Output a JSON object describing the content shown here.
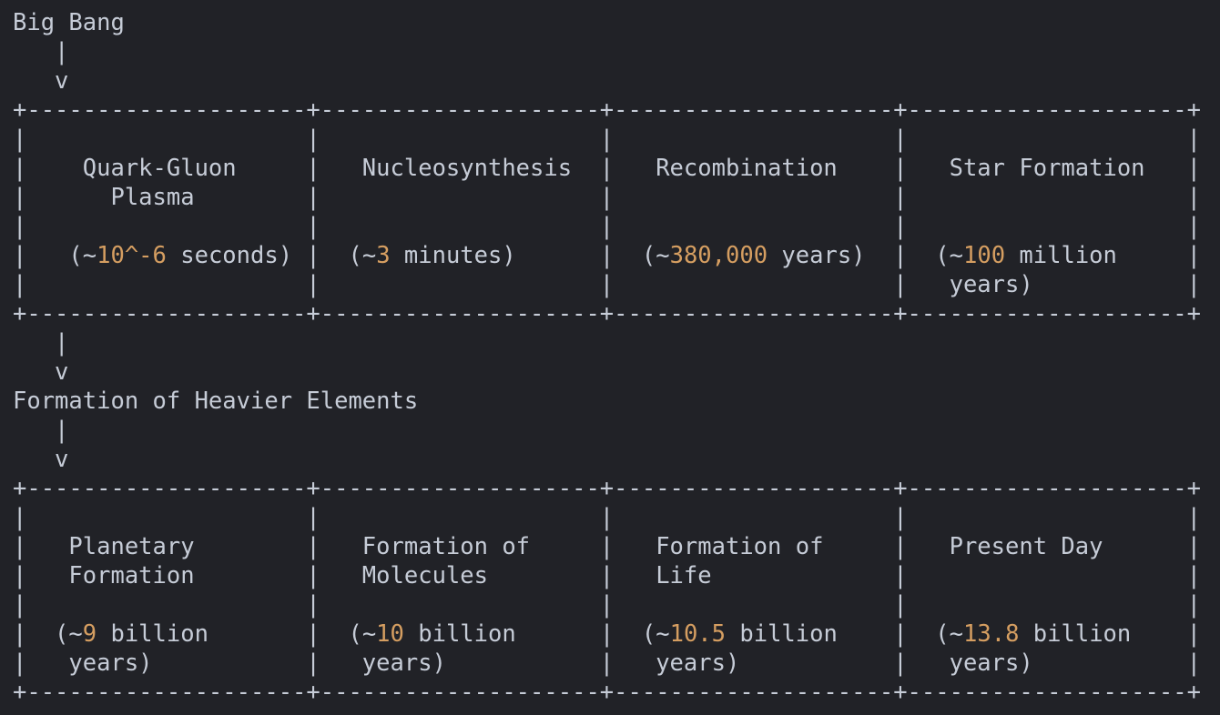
{
  "colors": {
    "background": "#212227",
    "foreground": "#c6ccd7",
    "number_accent": "#d59e61"
  },
  "flow": {
    "start_label": "Big Bang",
    "intermediate_label": "Formation of Heavier Elements",
    "arrow_pipe": "|",
    "arrow_head": "v"
  },
  "stage_rows": [
    [
      {
        "name": "Quark-Gluon Plasma",
        "time": "~10^-6 seconds"
      },
      {
        "name": "Nucleosynthesis",
        "time": "~3 minutes"
      },
      {
        "name": "Recombination",
        "time": "~380,000 years"
      },
      {
        "name": "Star Formation",
        "time": "~100 million years"
      }
    ],
    [
      {
        "name": "Planetary Formation",
        "time": "~9 billion years"
      },
      {
        "name": "Formation of Molecules",
        "time": "~10 billion years"
      },
      {
        "name": "Formation of Life",
        "time": "~10.5 billion years"
      },
      {
        "name": "Present Day",
        "time": "~13.8 billion years"
      }
    ]
  ],
  "diagram": {
    "lines": [
      [
        {
          "t": "Big Bang"
        }
      ],
      [
        {
          "t": "   |"
        }
      ],
      [
        {
          "t": "   v"
        }
      ],
      [
        {
          "t": "+--------------------+--------------------+--------------------+--------------------+"
        }
      ],
      [
        {
          "t": "|                    |                    |                    |                    |"
        }
      ],
      [
        {
          "t": "|    Quark-Gluon     |   Nucleosynthesis  |   Recombination    |   Star Formation   |"
        }
      ],
      [
        {
          "t": "|      Plasma        |                    |                    |                    |"
        }
      ],
      [
        {
          "t": "|                    |                    |                    |                    |"
        }
      ],
      [
        {
          "t": "|   (~"
        },
        {
          "t": "10^-6",
          "c": "num"
        },
        {
          "t": " seconds) |  (~"
        },
        {
          "t": "3",
          "c": "num"
        },
        {
          "t": " minutes)      |  (~"
        },
        {
          "t": "380,000",
          "c": "num"
        },
        {
          "t": " years)  |  (~"
        },
        {
          "t": "100",
          "c": "num"
        },
        {
          "t": " million     |"
        }
      ],
      [
        {
          "t": "|                    |                    |                    |   years)           |"
        }
      ],
      [
        {
          "t": "+--------------------+--------------------+--------------------+--------------------+"
        }
      ],
      [
        {
          "t": "   |"
        }
      ],
      [
        {
          "t": "   v"
        }
      ],
      [
        {
          "t": "Formation of Heavier Elements"
        }
      ],
      [
        {
          "t": "   |"
        }
      ],
      [
        {
          "t": "   v"
        }
      ],
      [
        {
          "t": "+--------------------+--------------------+--------------------+--------------------+"
        }
      ],
      [
        {
          "t": "|                    |                    |                    |                    |"
        }
      ],
      [
        {
          "t": "|   Planetary        |   Formation of     |   Formation of     |   Present Day      |"
        }
      ],
      [
        {
          "t": "|   Formation        |   Molecules        |   Life             |                    |"
        }
      ],
      [
        {
          "t": "|                    |                    |                    |                    |"
        }
      ],
      [
        {
          "t": "|  (~"
        },
        {
          "t": "9",
          "c": "num"
        },
        {
          "t": " billion       |  (~"
        },
        {
          "t": "10",
          "c": "num"
        },
        {
          "t": " billion      |  (~"
        },
        {
          "t": "10.5",
          "c": "num"
        },
        {
          "t": " billion    |  (~"
        },
        {
          "t": "13.8",
          "c": "num"
        },
        {
          "t": " billion    |"
        }
      ],
      [
        {
          "t": "|   years)           |   years)           |   years)           |   years)           |"
        }
      ],
      [
        {
          "t": "+--------------------+--------------------+--------------------+--------------------+"
        }
      ]
    ]
  }
}
